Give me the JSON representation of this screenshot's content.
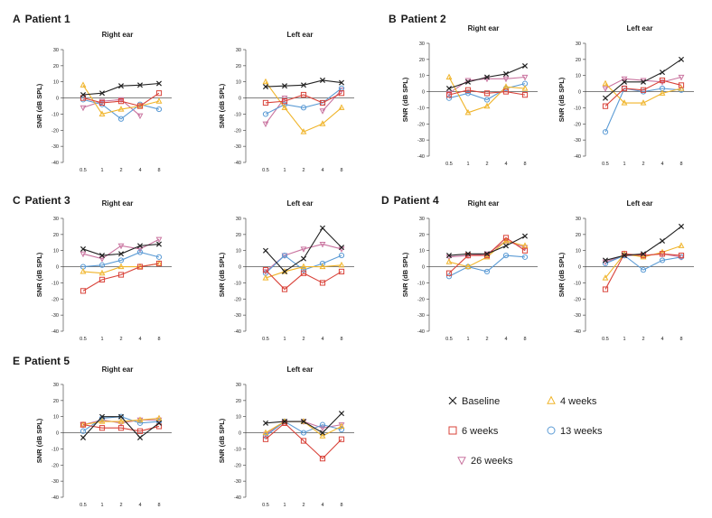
{
  "figure": {
    "panels": [
      {
        "letter": "A",
        "title": "Patient 1"
      },
      {
        "letter": "B",
        "title": "Patient 2"
      },
      {
        "letter": "C",
        "title": "Patient 3"
      },
      {
        "letter": "D",
        "title": "Patient 4"
      },
      {
        "letter": "E",
        "title": "Patient 5"
      }
    ],
    "series_style": [
      {
        "name": "Baseline",
        "color": "#222222",
        "marker": "x"
      },
      {
        "name": "4 weeks",
        "color": "#f0b429",
        "marker": "triangle-up"
      },
      {
        "name": "6 weeks",
        "color": "#d9433a",
        "marker": "square"
      },
      {
        "name": "13 weeks",
        "color": "#5b9bd5",
        "marker": "circle"
      },
      {
        "name": "26 weeks",
        "color": "#c9739f",
        "marker": "triangle-down"
      }
    ],
    "legend": {
      "items": [
        "Baseline",
        "4 weeks",
        "6 weeks",
        "13 weeks",
        "26 weeks"
      ]
    }
  },
  "chart_data": [
    {
      "type": "line",
      "panel": "A",
      "title": "Right ear",
      "ylabel": "SNR (dB SPL)",
      "ylim": [
        -40,
        30
      ],
      "yticks": [
        -40,
        -30,
        -20,
        -10,
        0,
        10,
        20,
        30
      ],
      "xticks": [
        "0.5",
        "1",
        "2",
        "4",
        "8"
      ],
      "series": [
        {
          "name": "Baseline",
          "values": [
            2,
            3,
            7.5,
            8,
            9
          ]
        },
        {
          "name": "4 weeks",
          "values": [
            8,
            -10,
            -7,
            -5,
            -2
          ]
        },
        {
          "name": "6 weeks",
          "values": [
            0,
            -3,
            -2,
            -5,
            3
          ]
        },
        {
          "name": "13 weeks",
          "values": [
            -1,
            -4,
            -13,
            -4,
            -7
          ]
        },
        {
          "name": "26 weeks",
          "values": [
            -6,
            -2,
            -1,
            -11,
            null
          ]
        }
      ]
    },
    {
      "type": "line",
      "panel": "A",
      "title": "Left ear",
      "ylabel": "SNR (dB SPL)",
      "ylim": [
        -40,
        30
      ],
      "yticks": [
        -40,
        -30,
        -20,
        -10,
        0,
        10,
        20,
        30
      ],
      "xticks": [
        "0.5",
        "1",
        "2",
        "4",
        "8"
      ],
      "series": [
        {
          "name": "Baseline",
          "values": [
            7,
            7.5,
            8,
            11,
            9.5
          ]
        },
        {
          "name": "4 weeks",
          "values": [
            10,
            -6,
            -21,
            -16,
            -6
          ]
        },
        {
          "name": "6 weeks",
          "values": [
            -3,
            -2,
            2,
            -3,
            3
          ]
        },
        {
          "name": "13 weeks",
          "values": [
            -10,
            -4,
            -6,
            -3,
            6
          ]
        },
        {
          "name": "26 weeks",
          "values": [
            -16,
            0,
            null,
            -8,
            5
          ]
        }
      ]
    },
    {
      "type": "line",
      "panel": "B",
      "title": "Right ear",
      "ylabel": "SNR (dB SPL)",
      "ylim": [
        -40,
        30
      ],
      "yticks": [
        -40,
        -30,
        -20,
        -10,
        0,
        10,
        20,
        30
      ],
      "xticks": [
        "0.5",
        "1",
        "2",
        "4",
        "8"
      ],
      "series": [
        {
          "name": "Baseline",
          "values": [
            2,
            6,
            9,
            11,
            16
          ]
        },
        {
          "name": "4 weeks",
          "values": [
            9,
            -13,
            -9,
            3,
            2
          ]
        },
        {
          "name": "6 weeks",
          "values": [
            -2,
            1,
            -1,
            0,
            -2
          ]
        },
        {
          "name": "13 weeks",
          "values": [
            -4,
            -1,
            -5,
            2,
            5
          ]
        },
        {
          "name": "26 weeks",
          "values": [
            -1,
            7,
            8,
            8,
            9
          ]
        }
      ]
    },
    {
      "type": "line",
      "panel": "B",
      "title": "Left ear",
      "ylabel": "SNR (dB SPL)",
      "ylim": [
        -40,
        30
      ],
      "yticks": [
        -40,
        -30,
        -20,
        -10,
        0,
        10,
        20,
        30
      ],
      "xticks": [
        "0.5",
        "1",
        "2",
        "4",
        "8"
      ],
      "series": [
        {
          "name": "Baseline",
          "values": [
            -4,
            6,
            6,
            12,
            20
          ]
        },
        {
          "name": "4 weeks",
          "values": [
            5,
            -7,
            -7,
            -1,
            2
          ]
        },
        {
          "name": "6 weeks",
          "values": [
            -9,
            2,
            1,
            7,
            4
          ]
        },
        {
          "name": "13 weeks",
          "values": [
            -25,
            2,
            0,
            2,
            1
          ]
        },
        {
          "name": "26 weeks",
          "values": [
            2,
            8,
            7,
            6,
            9
          ]
        }
      ]
    },
    {
      "type": "line",
      "panel": "C",
      "title": "Right ear",
      "ylabel": "SNR (dB SPL)",
      "ylim": [
        -40,
        30
      ],
      "yticks": [
        -40,
        -30,
        -20,
        -10,
        0,
        10,
        20,
        30
      ],
      "xticks": [
        "0.5",
        "1",
        "2",
        "4",
        "8"
      ],
      "series": [
        {
          "name": "Baseline",
          "values": [
            11,
            7,
            8,
            13,
            14
          ]
        },
        {
          "name": "4 weeks",
          "values": [
            -3,
            -4,
            0,
            0,
            2
          ]
        },
        {
          "name": "6 weeks",
          "values": [
            -15,
            -8,
            -5,
            0,
            2
          ]
        },
        {
          "name": "13 weeks",
          "values": [
            0,
            1,
            4,
            9,
            6
          ]
        },
        {
          "name": "26 weeks",
          "values": [
            8,
            5,
            13,
            11,
            17
          ]
        }
      ]
    },
    {
      "type": "line",
      "panel": "C",
      "title": "Left ear",
      "ylabel": "SNR (dB SPL)",
      "ylim": [
        -40,
        30
      ],
      "yticks": [
        -40,
        -30,
        -20,
        -10,
        0,
        10,
        20,
        30
      ],
      "xticks": [
        "0.5",
        "1",
        "2",
        "4",
        "8"
      ],
      "series": [
        {
          "name": "Baseline",
          "values": [
            10,
            -3,
            5,
            24,
            12
          ]
        },
        {
          "name": "4 weeks",
          "values": [
            -7,
            -3,
            0,
            0,
            1
          ]
        },
        {
          "name": "6 weeks",
          "values": [
            -2,
            -14,
            -4,
            -10,
            -3
          ]
        },
        {
          "name": "13 weeks",
          "values": [
            -4,
            7,
            -2,
            2,
            7
          ]
        },
        {
          "name": "26 weeks",
          "values": [
            -3,
            7,
            11,
            14,
            11
          ]
        }
      ]
    },
    {
      "type": "line",
      "panel": "D",
      "title": "Right ear",
      "ylabel": "SNR (dB SPL)",
      "ylim": [
        -40,
        30
      ],
      "yticks": [
        -40,
        -30,
        -20,
        -10,
        0,
        10,
        20,
        30
      ],
      "xticks": [
        "0.5",
        "1",
        "2",
        "4",
        "8"
      ],
      "series": [
        {
          "name": "Baseline",
          "values": [
            7,
            8,
            8,
            13,
            19
          ]
        },
        {
          "name": "4 weeks",
          "values": [
            3,
            0,
            6,
            16,
            13
          ]
        },
        {
          "name": "6 weeks",
          "values": [
            -4,
            7,
            7,
            18,
            10
          ]
        },
        {
          "name": "13 weeks",
          "values": [
            -6,
            0,
            -3,
            7,
            6
          ]
        },
        {
          "name": "26 weeks",
          "values": [
            6,
            7,
            8,
            16,
            12
          ]
        }
      ]
    },
    {
      "type": "line",
      "panel": "D",
      "title": "Left ear",
      "ylabel": "SNR (dB SPL)",
      "ylim": [
        -40,
        30
      ],
      "yticks": [
        -40,
        -30,
        -20,
        -10,
        0,
        10,
        20,
        30
      ],
      "xticks": [
        "0.5",
        "1",
        "2",
        "4",
        "8"
      ],
      "series": [
        {
          "name": "Baseline",
          "values": [
            4,
            7,
            8,
            16,
            25
          ]
        },
        {
          "name": "4 weeks",
          "values": [
            -7,
            8,
            6,
            9,
            13
          ]
        },
        {
          "name": "6 weeks",
          "values": [
            -14,
            8,
            7,
            8,
            7
          ]
        },
        {
          "name": "13 weeks",
          "values": [
            2,
            7,
            -2,
            4,
            6
          ]
        },
        {
          "name": "26 weeks",
          "values": [
            3,
            7,
            7,
            8,
            6
          ]
        }
      ]
    },
    {
      "type": "line",
      "panel": "E",
      "title": "Right ear",
      "ylabel": "SNR (dB SPL)",
      "ylim": [
        -40,
        30
      ],
      "yticks": [
        -40,
        -30,
        -20,
        -10,
        0,
        10,
        20,
        30
      ],
      "xticks": [
        "0.5",
        "1",
        "2",
        "4",
        "8"
      ],
      "series": [
        {
          "name": "Baseline",
          "values": [
            -3,
            10,
            10,
            -3,
            6
          ]
        },
        {
          "name": "4 weeks",
          "values": [
            5,
            7,
            7,
            8,
            9
          ]
        },
        {
          "name": "6 weeks",
          "values": [
            5,
            3,
            3,
            1,
            4
          ]
        },
        {
          "name": "13 weeks",
          "values": [
            1,
            9,
            10,
            6,
            7
          ]
        },
        {
          "name": "26 weeks",
          "values": [
            5,
            8,
            6,
            8,
            8
          ]
        }
      ]
    },
    {
      "type": "line",
      "panel": "E",
      "title": "Left ear",
      "ylabel": "SNR (dB SPL)",
      "ylim": [
        -40,
        30
      ],
      "yticks": [
        -40,
        -30,
        -20,
        -10,
        0,
        10,
        20,
        30
      ],
      "xticks": [
        "0.5",
        "1",
        "2",
        "4",
        "8"
      ],
      "series": [
        {
          "name": "Baseline",
          "values": [
            6,
            7,
            7,
            0,
            12
          ]
        },
        {
          "name": "4 weeks",
          "values": [
            0,
            7,
            7,
            -2,
            4
          ]
        },
        {
          "name": "6 weeks",
          "values": [
            -4,
            6,
            -5,
            -16,
            -4
          ]
        },
        {
          "name": "13 weeks",
          "values": [
            -2,
            7,
            0,
            5,
            2
          ]
        },
        {
          "name": "26 weeks",
          "values": [
            -1,
            7,
            7,
            3,
            5
          ]
        }
      ]
    }
  ]
}
